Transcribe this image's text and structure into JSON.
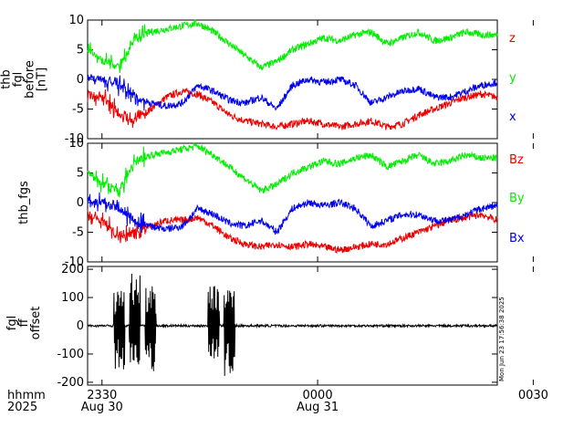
{
  "colors": {
    "red": "#ee0000",
    "green": "#00ee00",
    "blue": "#0000ee",
    "black": "#000000"
  },
  "time_axis": {
    "label_line1": "hhmm",
    "label_line2": "2025",
    "ticks": [
      {
        "time": "2330",
        "date": "Aug 30",
        "minutes": -30
      },
      {
        "time": "0000",
        "date": "Aug 31",
        "minutes": 0
      },
      {
        "time": "0030",
        "date": "",
        "minutes": 30
      }
    ],
    "range_minutes": [
      -32,
      25
    ]
  },
  "timestamp_text": "Mon Jun 23 17:56:38 2025",
  "chart_data": [
    {
      "type": "line",
      "panel": "top",
      "ylabel_lines": [
        "thb",
        "fgl",
        "before",
        "[nT]"
      ],
      "ylim": [
        -10,
        10
      ],
      "yticks": [
        10,
        5,
        0,
        -5,
        -10
      ],
      "x_range_minutes": [
        -32,
        25
      ],
      "series": [
        {
          "name": "z",
          "color": "red",
          "values": [
            -2.5,
            -3,
            -6,
            -7,
            -5,
            -3,
            -2,
            -2.5,
            -4,
            -6,
            -7,
            -7.5,
            -8,
            -7.5,
            -7,
            -7.5,
            -8,
            -7.5,
            -7,
            -8,
            -7.5,
            -6,
            -5,
            -4,
            -3,
            -2.5,
            -3
          ]
        },
        {
          "name": "y",
          "color": "green",
          "values": [
            5,
            3,
            2,
            7,
            8,
            8.5,
            9,
            9.5,
            8,
            6,
            4,
            2,
            3,
            5,
            6,
            7,
            6.5,
            7.5,
            8,
            6,
            7,
            8,
            6.5,
            7,
            8,
            7.5,
            7.5
          ]
        },
        {
          "name": "x",
          "color": "blue",
          "values": [
            0.5,
            0,
            -1,
            -3,
            -4,
            -4.5,
            -4,
            -1,
            -2,
            -3.5,
            -4,
            -3,
            -5,
            -1,
            0,
            -0.5,
            0,
            -1,
            -4,
            -3,
            -2,
            -1.5,
            -3,
            -3,
            -2,
            -1,
            -0.5
          ]
        }
      ]
    },
    {
      "type": "line",
      "panel": "middle",
      "ylabel_lines": [
        "thb_fgs"
      ],
      "ylim": [
        -10,
        10
      ],
      "yticks": [
        10,
        5,
        0,
        -5,
        -10
      ],
      "x_range_minutes": [
        -32,
        25
      ],
      "series": [
        {
          "name": "Bz",
          "color": "red",
          "values": [
            -2.5,
            -3,
            -6,
            -5,
            -4,
            -3,
            -3,
            -2.5,
            -4,
            -6,
            -7,
            -7.5,
            -7,
            -7.5,
            -7,
            -7.5,
            -8,
            -7.5,
            -7,
            -7,
            -6,
            -5,
            -4,
            -3,
            -2.5,
            -2,
            -3
          ]
        },
        {
          "name": "By",
          "color": "green",
          "values": [
            5,
            3,
            2,
            7,
            8,
            8.5,
            9,
            9.5,
            8,
            6,
            4,
            2,
            3,
            5,
            6,
            7,
            6.5,
            7.5,
            8,
            6,
            7,
            8,
            6.5,
            7,
            8,
            7.5,
            7.5
          ]
        },
        {
          "name": "Bx",
          "color": "blue",
          "values": [
            0.5,
            0,
            -1,
            -3,
            -4,
            -4.5,
            -4,
            -1,
            -2,
            -3.5,
            -4,
            -3,
            -5,
            -1,
            0,
            -0.5,
            0,
            -1,
            -4,
            -3,
            -2,
            -2,
            -3,
            -3,
            -2,
            -1,
            -0.5
          ]
        }
      ]
    },
    {
      "type": "line",
      "panel": "bottom",
      "ylabel_lines": [
        "fgl",
        "ff",
        "offset"
      ],
      "ylim": [
        -210,
        210
      ],
      "yticks": [
        200,
        100,
        0,
        -100,
        -200
      ],
      "x_range_minutes": [
        -32,
        25
      ],
      "series": [
        {
          "name": "offset",
          "color": "black",
          "values": [
            0,
            5,
            -160,
            190,
            -180,
            10,
            0,
            0,
            150,
            -190,
            20,
            0,
            0,
            0,
            0,
            0,
            0,
            0,
            0,
            0,
            0,
            0,
            0,
            0,
            0,
            0,
            0
          ]
        }
      ]
    }
  ]
}
